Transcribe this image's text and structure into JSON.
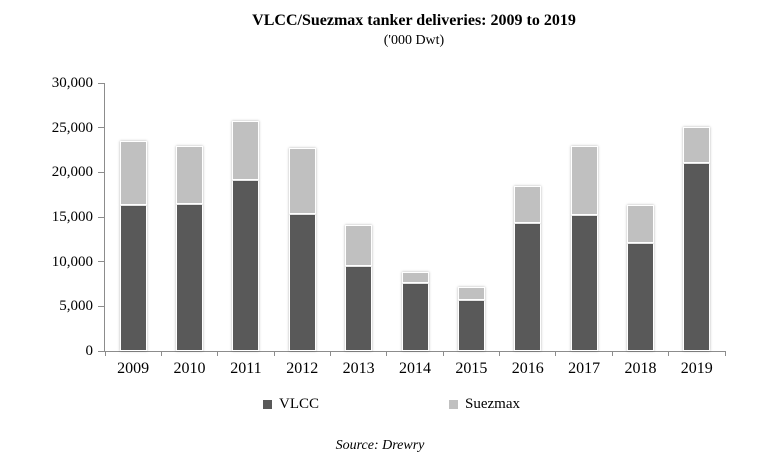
{
  "chart_data": {
    "type": "bar",
    "stacked": true,
    "title": "VLCC/Suezmax tanker deliveries: 2009 to 2019",
    "subtitle": "('000 Dwt)",
    "source": "Source: Drewry",
    "categories": [
      "2009",
      "2010",
      "2011",
      "2012",
      "2013",
      "2014",
      "2015",
      "2016",
      "2017",
      "2018",
      "2019"
    ],
    "series": [
      {
        "name": "VLCC",
        "color": "#595959",
        "values": [
          16300,
          16500,
          19100,
          15300,
          9500,
          7600,
          5700,
          14300,
          15200,
          12100,
          21000
        ]
      },
      {
        "name": "Suezmax",
        "color": "#c0c0c0",
        "values": [
          7200,
          6400,
          6600,
          7400,
          4600,
          1200,
          1500,
          4200,
          7800,
          4300,
          4100
        ]
      }
    ],
    "totals": [
      23500,
      22900,
      25700,
      22700,
      14100,
      8800,
      7200,
      18500,
      23000,
      16400,
      25100
    ],
    "xlabel": "",
    "ylabel": "",
    "ylim": [
      0,
      30000
    ],
    "ytick_step": 5000,
    "grid": false,
    "legend_position": "bottom",
    "axis_color": "#8c8c8c",
    "text_color": "#000000",
    "background_color": "#ffffff"
  }
}
